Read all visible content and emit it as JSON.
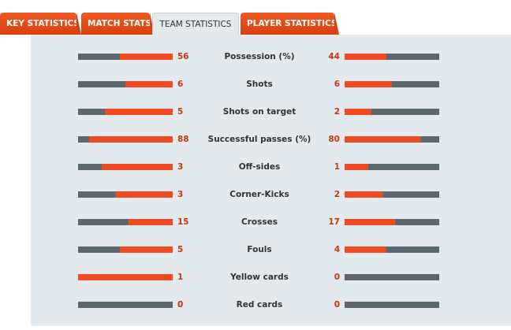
{
  "tabs": [
    {
      "label": "KEY STATISTICS",
      "active": false
    },
    {
      "label": "MATCH STATS",
      "active": false
    },
    {
      "label": "TEAM STATISTICS",
      "active": true
    },
    {
      "label": "PLAYER STATISTICS",
      "active": false
    }
  ],
  "colors": {
    "accent": "#f04a23",
    "bar_base": "#5c6770",
    "value_text": "#c8370e",
    "panel_bg": "#e4e9ed"
  },
  "stats": [
    {
      "label": "Possession (%)",
      "home": "56",
      "away": "44",
      "home_share": 0.56,
      "away_share": 0.44
    },
    {
      "label": "Shots",
      "home": "6",
      "away": "6",
      "home_share": 0.5,
      "away_share": 0.5
    },
    {
      "label": "Shots on target",
      "home": "5",
      "away": "2",
      "home_share": 0.714,
      "away_share": 0.286
    },
    {
      "label": "Successful passes (%)",
      "home": "88",
      "away": "80",
      "home_share": 0.88,
      "away_share": 0.8
    },
    {
      "label": "Off-sides",
      "home": "3",
      "away": "1",
      "home_share": 0.75,
      "away_share": 0.25
    },
    {
      "label": "Corner-Kicks",
      "home": "3",
      "away": "2",
      "home_share": 0.6,
      "away_share": 0.4
    },
    {
      "label": "Crosses",
      "home": "15",
      "away": "17",
      "home_share": 0.469,
      "away_share": 0.531
    },
    {
      "label": "Fouls",
      "home": "5",
      "away": "4",
      "home_share": 0.556,
      "away_share": 0.444
    },
    {
      "label": "Yellow cards",
      "home": "1",
      "away": "0",
      "home_share": 1.0,
      "away_share": 0.0
    },
    {
      "label": "Red cards",
      "home": "0",
      "away": "0",
      "home_share": 0.0,
      "away_share": 0.0
    }
  ]
}
